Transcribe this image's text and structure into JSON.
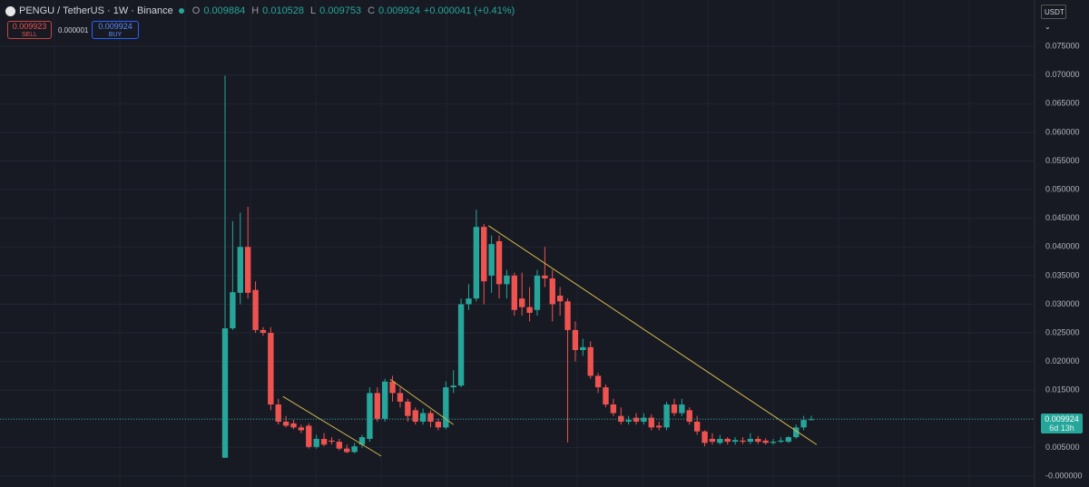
{
  "chart_data": {
    "type": "candlestick",
    "title": "PENGU / TetherUS · 1W · Binance",
    "ohlc_labels": {
      "open": "O",
      "high": "H",
      "low": "L",
      "close": "C"
    },
    "ohlc_values": {
      "open": "0.009884",
      "high": "0.010528",
      "low": "0.009753",
      "close": "0.009924"
    },
    "change": "+0.000041 (+0.41%)",
    "up_color": "#26a69a",
    "down_color": "#ef5350",
    "open": [
      0.0032,
      0.0258,
      0.032,
      0.04,
      0.0325,
      0.0255,
      0.025,
      0.0125,
      0.0095,
      0.0092,
      0.0085,
      0.0088,
      0.0051,
      0.0065,
      0.0062,
      0.006,
      0.0048,
      0.0042,
      0.0055,
      0.0065,
      0.0145,
      0.01,
      0.0165,
      0.0145,
      0.013,
      0.0115,
      0.0095,
      0.011,
      0.0095,
      0.0085,
      0.0155,
      0.0158,
      0.03,
      0.031,
      0.0435,
      0.035,
      0.041,
      0.0335,
      0.035,
      0.031,
      0.0295,
      0.029,
      0.035,
      0.0345,
      0.0315,
      0.0305,
      0.0255,
      0.022,
      0.0225,
      0.0175,
      0.0155,
      0.0125,
      0.0105,
      0.0095,
      0.0102,
      0.0095,
      0.0102,
      0.0088,
      0.0085,
      0.0125,
      0.011,
      0.0115,
      0.0095,
      0.0078,
      0.0065,
      0.0058,
      0.0065,
      0.006,
      0.0062,
      0.006,
      0.0065,
      0.0062,
      0.0058,
      0.006,
      0.006,
      0.0068,
      0.0085,
      0.009884
    ],
    "high": [
      0.0699,
      0.0445,
      0.046,
      0.047,
      0.034,
      0.026,
      0.026,
      0.0135,
      0.0105,
      0.0098,
      0.009,
      0.0092,
      0.0072,
      0.0075,
      0.0068,
      0.0065,
      0.0055,
      0.0058,
      0.0072,
      0.0155,
      0.0155,
      0.017,
      0.0175,
      0.0155,
      0.0135,
      0.012,
      0.0118,
      0.0115,
      0.01,
      0.0165,
      0.0185,
      0.031,
      0.0335,
      0.0465,
      0.044,
      0.042,
      0.042,
      0.036,
      0.0355,
      0.0355,
      0.033,
      0.036,
      0.04,
      0.036,
      0.033,
      0.031,
      0.027,
      0.024,
      0.0235,
      0.018,
      0.016,
      0.0135,
      0.012,
      0.0105,
      0.011,
      0.011,
      0.0108,
      0.0095,
      0.013,
      0.0135,
      0.0135,
      0.012,
      0.0105,
      0.008,
      0.0075,
      0.0072,
      0.0068,
      0.0068,
      0.0068,
      0.0075,
      0.007,
      0.0066,
      0.0065,
      0.0068,
      0.007,
      0.009,
      0.0105,
      0.010528
    ],
    "low": [
      0.0032,
      0.0255,
      0.03,
      0.031,
      0.025,
      0.0245,
      0.0115,
      0.009,
      0.0085,
      0.0082,
      0.0075,
      0.0048,
      0.0048,
      0.0052,
      0.0055,
      0.0045,
      0.004,
      0.004,
      0.005,
      0.006,
      0.0095,
      0.0095,
      0.013,
      0.012,
      0.0095,
      0.009,
      0.009,
      0.0085,
      0.008,
      0.0082,
      0.0145,
      0.0155,
      0.029,
      0.0305,
      0.03,
      0.032,
      0.031,
      0.031,
      0.028,
      0.028,
      0.027,
      0.028,
      0.033,
      0.027,
      0.028,
      0.0059,
      0.02,
      0.021,
      0.017,
      0.0145,
      0.012,
      0.0105,
      0.009,
      0.009,
      0.009,
      0.009,
      0.008,
      0.008,
      0.008,
      0.0105,
      0.0105,
      0.009,
      0.0072,
      0.0052,
      0.0055,
      0.0055,
      0.0055,
      0.0055,
      0.0056,
      0.0056,
      0.0056,
      0.0055,
      0.0055,
      0.0058,
      0.0058,
      0.0065,
      0.008,
      0.009753
    ],
    "close": [
      0.0258,
      0.0321,
      0.04,
      0.032,
      0.0255,
      0.025,
      0.0125,
      0.0095,
      0.0088,
      0.0085,
      0.008,
      0.0051,
      0.0065,
      0.0055,
      0.006,
      0.0048,
      0.0042,
      0.0052,
      0.0068,
      0.0145,
      0.01,
      0.0165,
      0.0145,
      0.013,
      0.0105,
      0.0095,
      0.011,
      0.0095,
      0.0085,
      0.0155,
      0.0158,
      0.03,
      0.031,
      0.0435,
      0.034,
      0.0405,
      0.0335,
      0.035,
      0.029,
      0.0295,
      0.0285,
      0.035,
      0.0345,
      0.03,
      0.0305,
      0.0255,
      0.022,
      0.0225,
      0.0175,
      0.0155,
      0.0125,
      0.011,
      0.0095,
      0.0098,
      0.0095,
      0.0102,
      0.0085,
      0.0085,
      0.0125,
      0.011,
      0.0125,
      0.0095,
      0.0078,
      0.0058,
      0.006,
      0.0065,
      0.006,
      0.0063,
      0.006,
      0.0065,
      0.006,
      0.0058,
      0.006,
      0.0062,
      0.0068,
      0.0085,
      0.0098,
      0.009924
    ],
    "ylim": [
      -0.0019,
      0.0831
    ],
    "yticks": [
      {
        "value": 0,
        "label": "-0.000000"
      },
      {
        "value": 0.005,
        "label": "0.005000"
      },
      {
        "value": 0.01,
        "label": "0.010000"
      },
      {
        "value": 0.015,
        "label": "0.015000"
      },
      {
        "value": 0.02,
        "label": "0.020000"
      },
      {
        "value": 0.025,
        "label": "0.025000"
      },
      {
        "value": 0.03,
        "label": "0.030000"
      },
      {
        "value": 0.035,
        "label": "0.035000"
      },
      {
        "value": 0.04,
        "label": "0.040000"
      },
      {
        "value": 0.045,
        "label": "0.045000"
      },
      {
        "value": 0.05,
        "label": "0.050000"
      },
      {
        "value": 0.055,
        "label": "0.055000"
      },
      {
        "value": 0.06,
        "label": "0.060000"
      },
      {
        "value": 0.065,
        "label": "0.065000"
      },
      {
        "value": 0.07,
        "label": "0.070000"
      },
      {
        "value": 0.075,
        "label": "0.075000"
      }
    ],
    "last_price": {
      "value": 0.009924,
      "label": "0.009924",
      "countdown": "6d 13h"
    },
    "trendlines": [
      {
        "x": [
          7.6,
          20.5
        ],
        "y": [
          0.0139,
          0.0035
        ]
      },
      {
        "x": [
          21.7,
          30.0
        ],
        "y": [
          0.0169,
          0.009
        ]
      },
      {
        "x": [
          34.6,
          77.7
        ],
        "y": [
          0.0437,
          0.0055
        ]
      }
    ],
    "trendline_color": "#d4b84a",
    "grid": true
  },
  "toolbar": {
    "sell_price": "0.009923",
    "sell": "SELL",
    "spread": "0.000001",
    "buy_price": "0.009924",
    "buy": "BUY",
    "currency": "USDT"
  }
}
